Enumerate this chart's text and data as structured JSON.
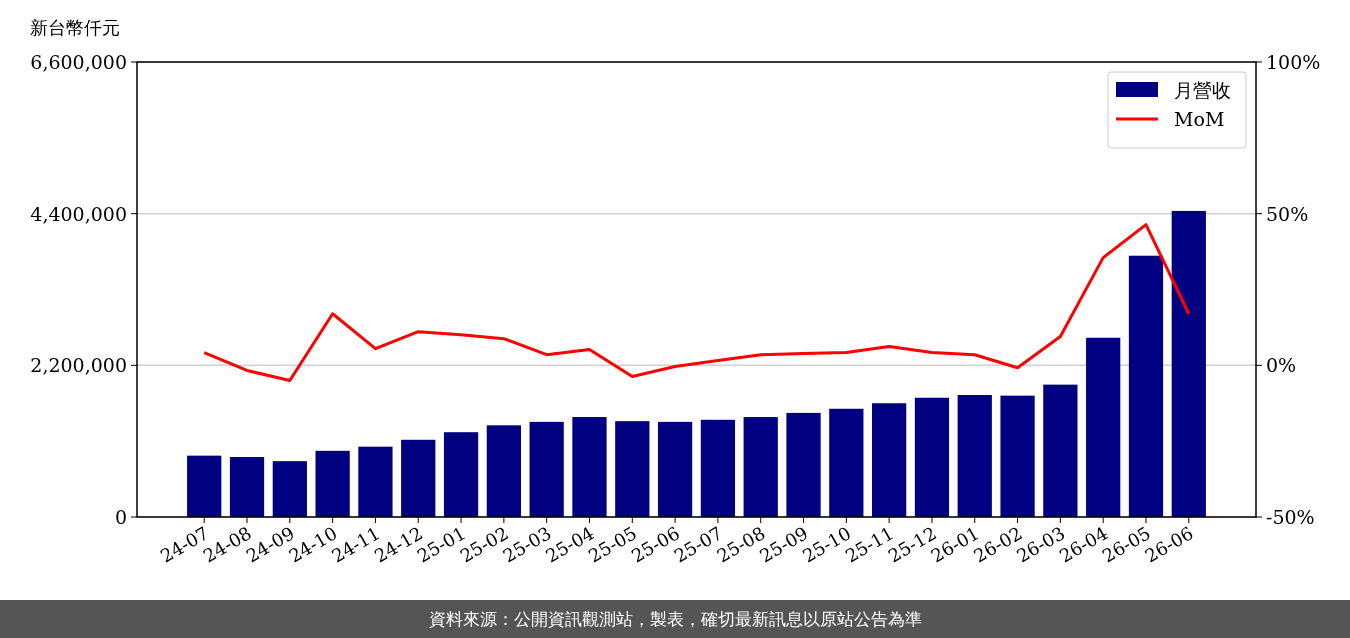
{
  "chart_data": {
    "type": "bar",
    "ylabel": "新台幣仟元",
    "categories": [
      "24-07",
      "24-08",
      "24-09",
      "24-10",
      "24-11",
      "24-12",
      "25-01",
      "25-02",
      "25-03",
      "25-04",
      "25-05",
      "25-06",
      "25-07",
      "25-08",
      "25-09",
      "25-10",
      "25-11",
      "25-12",
      "26-01",
      "26-02",
      "26-03",
      "26-04",
      "26-05",
      "26-06"
    ],
    "series": [
      {
        "name": "月營收",
        "color": "#000080",
        "values": [
          890000,
          870000,
          810000,
          960000,
          1020000,
          1120000,
          1230000,
          1330000,
          1380000,
          1450000,
          1390000,
          1380000,
          1410000,
          1450000,
          1510000,
          1570000,
          1650000,
          1730000,
          1770000,
          1760000,
          1920000,
          2600000,
          3790000,
          4440000
        ]
      },
      {
        "name": "MoM",
        "type": "line",
        "axis": "y2",
        "color": "#ff0000",
        "values": [
          4.2,
          -1.7,
          -5.0,
          17.0,
          5.5,
          11.1,
          10.1,
          8.8,
          3.5,
          5.2,
          -3.7,
          -0.4,
          1.6,
          3.5,
          3.9,
          4.2,
          6.2,
          4.2,
          3.5,
          -0.8,
          9.5,
          35.5,
          46.4,
          17.0
        ]
      }
    ],
    "ylim": [
      0,
      6600000
    ],
    "yticks": [
      {
        "value": 0,
        "label": "0"
      },
      {
        "value": 2200000,
        "label": "2,200,000"
      },
      {
        "value": 4400000,
        "label": "4,400,000"
      },
      {
        "value": 6600000,
        "label": "6,600,000"
      }
    ],
    "y2lim": [
      -50,
      100
    ],
    "y2ticks": [
      {
        "value": -50,
        "label": "-50%"
      },
      {
        "value": 0,
        "label": "0%"
      },
      {
        "value": 50,
        "label": "50%"
      },
      {
        "value": 100,
        "label": "100%"
      }
    ],
    "grid": "y",
    "legend": "top right",
    "annotations": [
      "資料來源：公開資訊觀測站，製表，確切最新訊息以原站公告為準"
    ]
  }
}
